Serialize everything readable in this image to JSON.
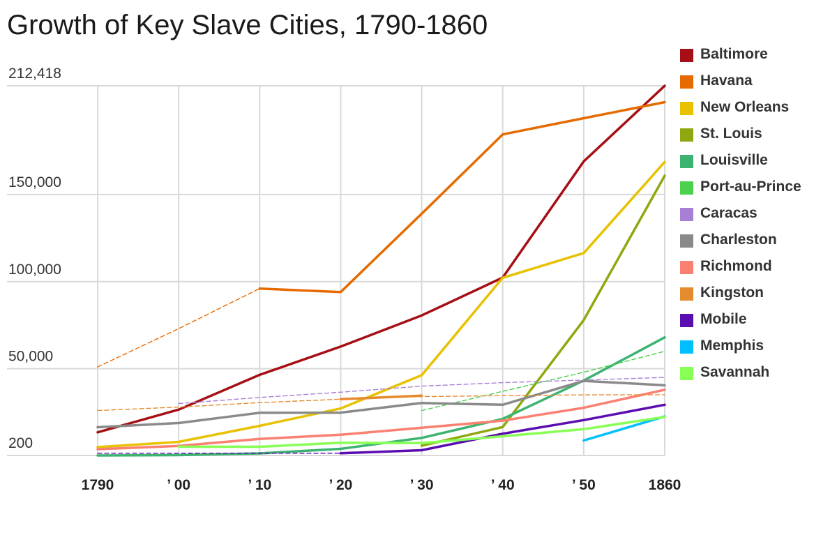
{
  "chart_data": {
    "type": "line",
    "title": "Growth of Key Slave Cities, 1790-1860",
    "xlabel": "",
    "ylabel": "",
    "x": [
      1790,
      1800,
      1810,
      1820,
      1830,
      1840,
      1850,
      1860
    ],
    "x_tick_labels": [
      "1790",
      "’ 00",
      "’ 10",
      "’ 20",
      "’ 30",
      "’ 40",
      "’ 50",
      "1860"
    ],
    "y_tick_values": [
      200,
      50000,
      100000,
      150000,
      212418
    ],
    "y_tick_labels": [
      "200",
      "50,000",
      "100,000",
      "150,000",
      "212,418"
    ],
    "ylim": [
      200,
      212418
    ],
    "grid": true,
    "legend_position": "right",
    "series": [
      {
        "name": "Baltimore",
        "color": "#a50f15",
        "style": "solid",
        "values": [
          13500,
          26500,
          46500,
          62700,
          80600,
          102300,
          169000,
          212418
        ]
      },
      {
        "name": "Havana",
        "color": "#e66a00",
        "style": "dashed",
        "values": [
          51000,
          73000,
          96000,
          null,
          null,
          null,
          null,
          null
        ]
      },
      {
        "name": "Havana",
        "color": "#e66a00",
        "style": "solid",
        "values": [
          null,
          null,
          96000,
          94000,
          139000,
          184500,
          193800,
          203000
        ]
      },
      {
        "name": "New Orleans",
        "color": "#e8c200",
        "style": "solid",
        "values": [
          5000,
          8000,
          17200,
          27200,
          46300,
          102200,
          116400,
          168700
        ]
      },
      {
        "name": "St. Louis",
        "color": "#8fa80f",
        "style": "solid",
        "values": [
          null,
          null,
          null,
          null,
          5800,
          16500,
          77900,
          160800
        ]
      },
      {
        "name": "Louisville",
        "color": "#3cb371",
        "style": "solid",
        "values": [
          200,
          400,
          1400,
          4000,
          10300,
          21200,
          43200,
          68000
        ]
      },
      {
        "name": "Port-au-Prince",
        "color": "#4cd14c",
        "style": "dashed",
        "values": [
          null,
          null,
          null,
          null,
          26000,
          37000,
          48000,
          60000
        ]
      },
      {
        "name": "Caracas",
        "color": "#a87fd6",
        "style": "dashed",
        "values": [
          null,
          30000,
          33500,
          36500,
          40000,
          42000,
          43500,
          45000
        ]
      },
      {
        "name": "Charleston",
        "color": "#8a8a8a",
        "style": "solid",
        "values": [
          16400,
          18800,
          24700,
          24800,
          30300,
          29300,
          43000,
          40500
        ]
      },
      {
        "name": "Richmond",
        "color": "#fa8072",
        "style": "solid",
        "values": [
          3800,
          5700,
          9700,
          12100,
          16100,
          20200,
          27600,
          37900
        ]
      },
      {
        "name": "Kingston",
        "color": "#e68a2e",
        "style": "dashed",
        "values": [
          26000,
          28000,
          30500,
          32500,
          34000,
          34500,
          35000,
          35000
        ]
      },
      {
        "name": "Kingston",
        "color": "#e68a2e",
        "style": "solid",
        "values": [
          null,
          null,
          null,
          32500,
          34500,
          null,
          null,
          null
        ]
      },
      {
        "name": "Mobile",
        "color": "#5a0db0",
        "style": "solid",
        "values": [
          null,
          null,
          null,
          1500,
          3200,
          12700,
          20500,
          29300
        ]
      },
      {
        "name": "Mobile",
        "color": "#5a0db0",
        "style": "dashed",
        "values": [
          1500,
          1500,
          1500,
          1500,
          null,
          null,
          null,
          null
        ]
      },
      {
        "name": "Memphis",
        "color": "#00bfff",
        "style": "solid",
        "values": [
          null,
          null,
          null,
          null,
          null,
          null,
          8800,
          22600
        ]
      },
      {
        "name": "Savannah",
        "color": "#88ff55",
        "style": "solid",
        "values": [
          null,
          5200,
          5200,
          7500,
          7300,
          11200,
          15300,
          22300
        ]
      }
    ]
  },
  "legend": [
    {
      "label": "Baltimore",
      "color": "#a50f15"
    },
    {
      "label": "Havana",
      "color": "#e66a00"
    },
    {
      "label": "New Orleans",
      "color": "#e8c200"
    },
    {
      "label": "St. Louis",
      "color": "#8fa80f"
    },
    {
      "label": "Louisville",
      "color": "#3cb371"
    },
    {
      "label": "Port-au-Prince",
      "color": "#4cd14c"
    },
    {
      "label": "Caracas",
      "color": "#a87fd6"
    },
    {
      "label": "Charleston",
      "color": "#8a8a8a"
    },
    {
      "label": "Richmond",
      "color": "#fa8072"
    },
    {
      "label": "Kingston",
      "color": "#e68a2e"
    },
    {
      "label": "Mobile",
      "color": "#5a0db0"
    },
    {
      "label": "Memphis",
      "color": "#00bfff"
    },
    {
      "label": "Savannah",
      "color": "#88ff55"
    }
  ]
}
